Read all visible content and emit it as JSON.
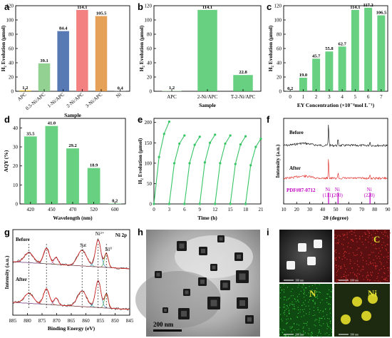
{
  "panels": {
    "a": "a",
    "b": "b",
    "c": "c",
    "d": "d",
    "e": "e",
    "f": "f",
    "g": "g",
    "h": "h",
    "i": "i"
  },
  "chart_data": [
    {
      "id": "a",
      "type": "bar",
      "categories": [
        "APC",
        "0.5-Ni/APC",
        "1-Ni/APC",
        "2-Ni/APC",
        "3-Ni/APC",
        "Ni"
      ],
      "values": [
        1.2,
        39.1,
        84.4,
        114.1,
        105.5,
        0.4
      ],
      "value_labels": [
        "1.2",
        "39.1",
        "84.4",
        "114.1",
        "105.5",
        "0.4"
      ],
      "bar_colors": [
        "#f1c40f",
        "#7fc97f",
        "#3a63a8",
        "#f26b6b",
        "#e0903a",
        "#7f7f7f"
      ],
      "xlabel": "Sample",
      "ylabel": "H₂ Evolution (μmol)",
      "ylim": [
        0,
        120
      ],
      "yticks": [
        0,
        20,
        40,
        60,
        80,
        100,
        120
      ]
    },
    {
      "id": "b",
      "type": "bar",
      "categories": [
        "APC",
        "2-Ni/APC",
        "T-2-Ni/APC"
      ],
      "values": [
        1.2,
        114.1,
        22.8
      ],
      "value_labels": [
        "1.2",
        "114.1",
        "22.8"
      ],
      "bar_colors": [
        "#cfe8cf",
        "#4cc86b",
        "#4cc86b"
      ],
      "xlabel": "Sample",
      "ylabel": "H₂ Evolution (μmol)",
      "ylim": [
        0,
        120
      ],
      "yticks": [
        0,
        20,
        40,
        60,
        80,
        100,
        120
      ]
    },
    {
      "id": "c",
      "type": "bar",
      "categories": [
        "0",
        "1",
        "2",
        "3",
        "4",
        "5",
        "6",
        "7"
      ],
      "values": [
        0.2,
        19.0,
        45.7,
        55.8,
        62.7,
        114.1,
        117.2,
        106.5
      ],
      "value_labels": [
        "0.2",
        "19.0",
        "45.7",
        "55.8",
        "62.7",
        "114.1",
        "117.2",
        "106.5"
      ],
      "bar_color": "#4cc86b",
      "xlabel": "EY Concentration (×10⁻⁴mol L⁻¹)",
      "ylabel": "H₂ Evolution (μmol)",
      "ylim": [
        0,
        120
      ],
      "yticks": [
        0,
        20,
        40,
        60,
        80,
        100,
        120
      ]
    },
    {
      "id": "d",
      "type": "bar",
      "categories": [
        "420",
        "450",
        "470",
        "520",
        "600"
      ],
      "values": [
        35.5,
        41.0,
        29.2,
        18.9,
        0.2
      ],
      "value_labels": [
        "35.5",
        "41.0",
        "29.2",
        "18.9",
        "0.2"
      ],
      "bar_color": "#4cc86b",
      "xlabel": "Wavelength (nm)",
      "ylabel": "AQY (%)",
      "ylim": [
        0,
        45
      ],
      "yticks": [
        0,
        10,
        20,
        30,
        40
      ]
    },
    {
      "id": "e",
      "type": "line",
      "cycles": [
        {
          "x": [
            0,
            1,
            2,
            3
          ],
          "y": [
            0,
            115,
            172,
            202
          ]
        },
        {
          "x": [
            3,
            4,
            5,
            6
          ],
          "y": [
            0,
            100,
            148,
            168
          ]
        },
        {
          "x": [
            6,
            7,
            8,
            9
          ],
          "y": [
            0,
            100,
            145,
            165
          ]
        },
        {
          "x": [
            9,
            10,
            11,
            12
          ],
          "y": [
            0,
            102,
            150,
            170
          ]
        },
        {
          "x": [
            12,
            13,
            14,
            15
          ],
          "y": [
            0,
            100,
            148,
            168
          ]
        },
        {
          "x": [
            15,
            16,
            17,
            18
          ],
          "y": [
            0,
            98,
            146,
            166
          ]
        },
        {
          "x": [
            18,
            19,
            20,
            21
          ],
          "y": [
            0,
            95,
            140,
            160
          ]
        }
      ],
      "line_color": "#38c566",
      "xlabel": "Time (h)",
      "ylabel": "H₂ Evolution (μmol)",
      "xlim": [
        0,
        21
      ],
      "ylim": [
        0,
        210
      ],
      "xticks": [
        0,
        3,
        6,
        9,
        12,
        15,
        18,
        21
      ],
      "yticks": [
        0,
        50,
        100,
        150,
        200
      ]
    },
    {
      "id": "f",
      "type": "line",
      "series": [
        {
          "name": "Before",
          "color": "#000000"
        },
        {
          "name": "After",
          "color": "#e0201b"
        }
      ],
      "reference": {
        "label": "PDF#87-0712",
        "color": "#c000c0",
        "peaks": [
          {
            "x": 44.5,
            "label": "Ni\n(111)"
          },
          {
            "x": 51.8,
            "label": "Ni\n(200)"
          },
          {
            "x": 76.4,
            "label": "Ni\n(220)"
          }
        ]
      },
      "xlabel": "2θ (degree)",
      "ylabel": "Intensity (a.u.)",
      "xlim": [
        10,
        90
      ],
      "xticks": [
        10,
        20,
        30,
        40,
        50,
        60,
        70,
        80,
        90
      ]
    },
    {
      "id": "g",
      "type": "line",
      "series": [
        {
          "name": "Before",
          "color": "#000000"
        },
        {
          "name": "After",
          "color": "#000000"
        }
      ],
      "title": "Ni 2p",
      "annotations": [
        "Ni²⁺",
        "Sat",
        "Ni⁰"
      ],
      "xlabel": "Binding Energy (eV)",
      "ylabel": "Intensity (a.u.)",
      "xlim": [
        885,
        845
      ],
      "xticks": [
        885,
        880,
        875,
        870,
        865,
        860,
        855,
        850,
        845
      ]
    }
  ],
  "images": {
    "h_scalebar": "200 nm",
    "i_tiles": [
      {
        "label": "",
        "scale": "100 nm"
      },
      {
        "label": "C",
        "scale": "100 nm",
        "color": "#e0e030"
      },
      {
        "label": "N",
        "scale": "100 nm",
        "color": "#e0e030"
      },
      {
        "label": "Ni",
        "scale": "100 nm",
        "color": "#e0e030"
      }
    ]
  }
}
